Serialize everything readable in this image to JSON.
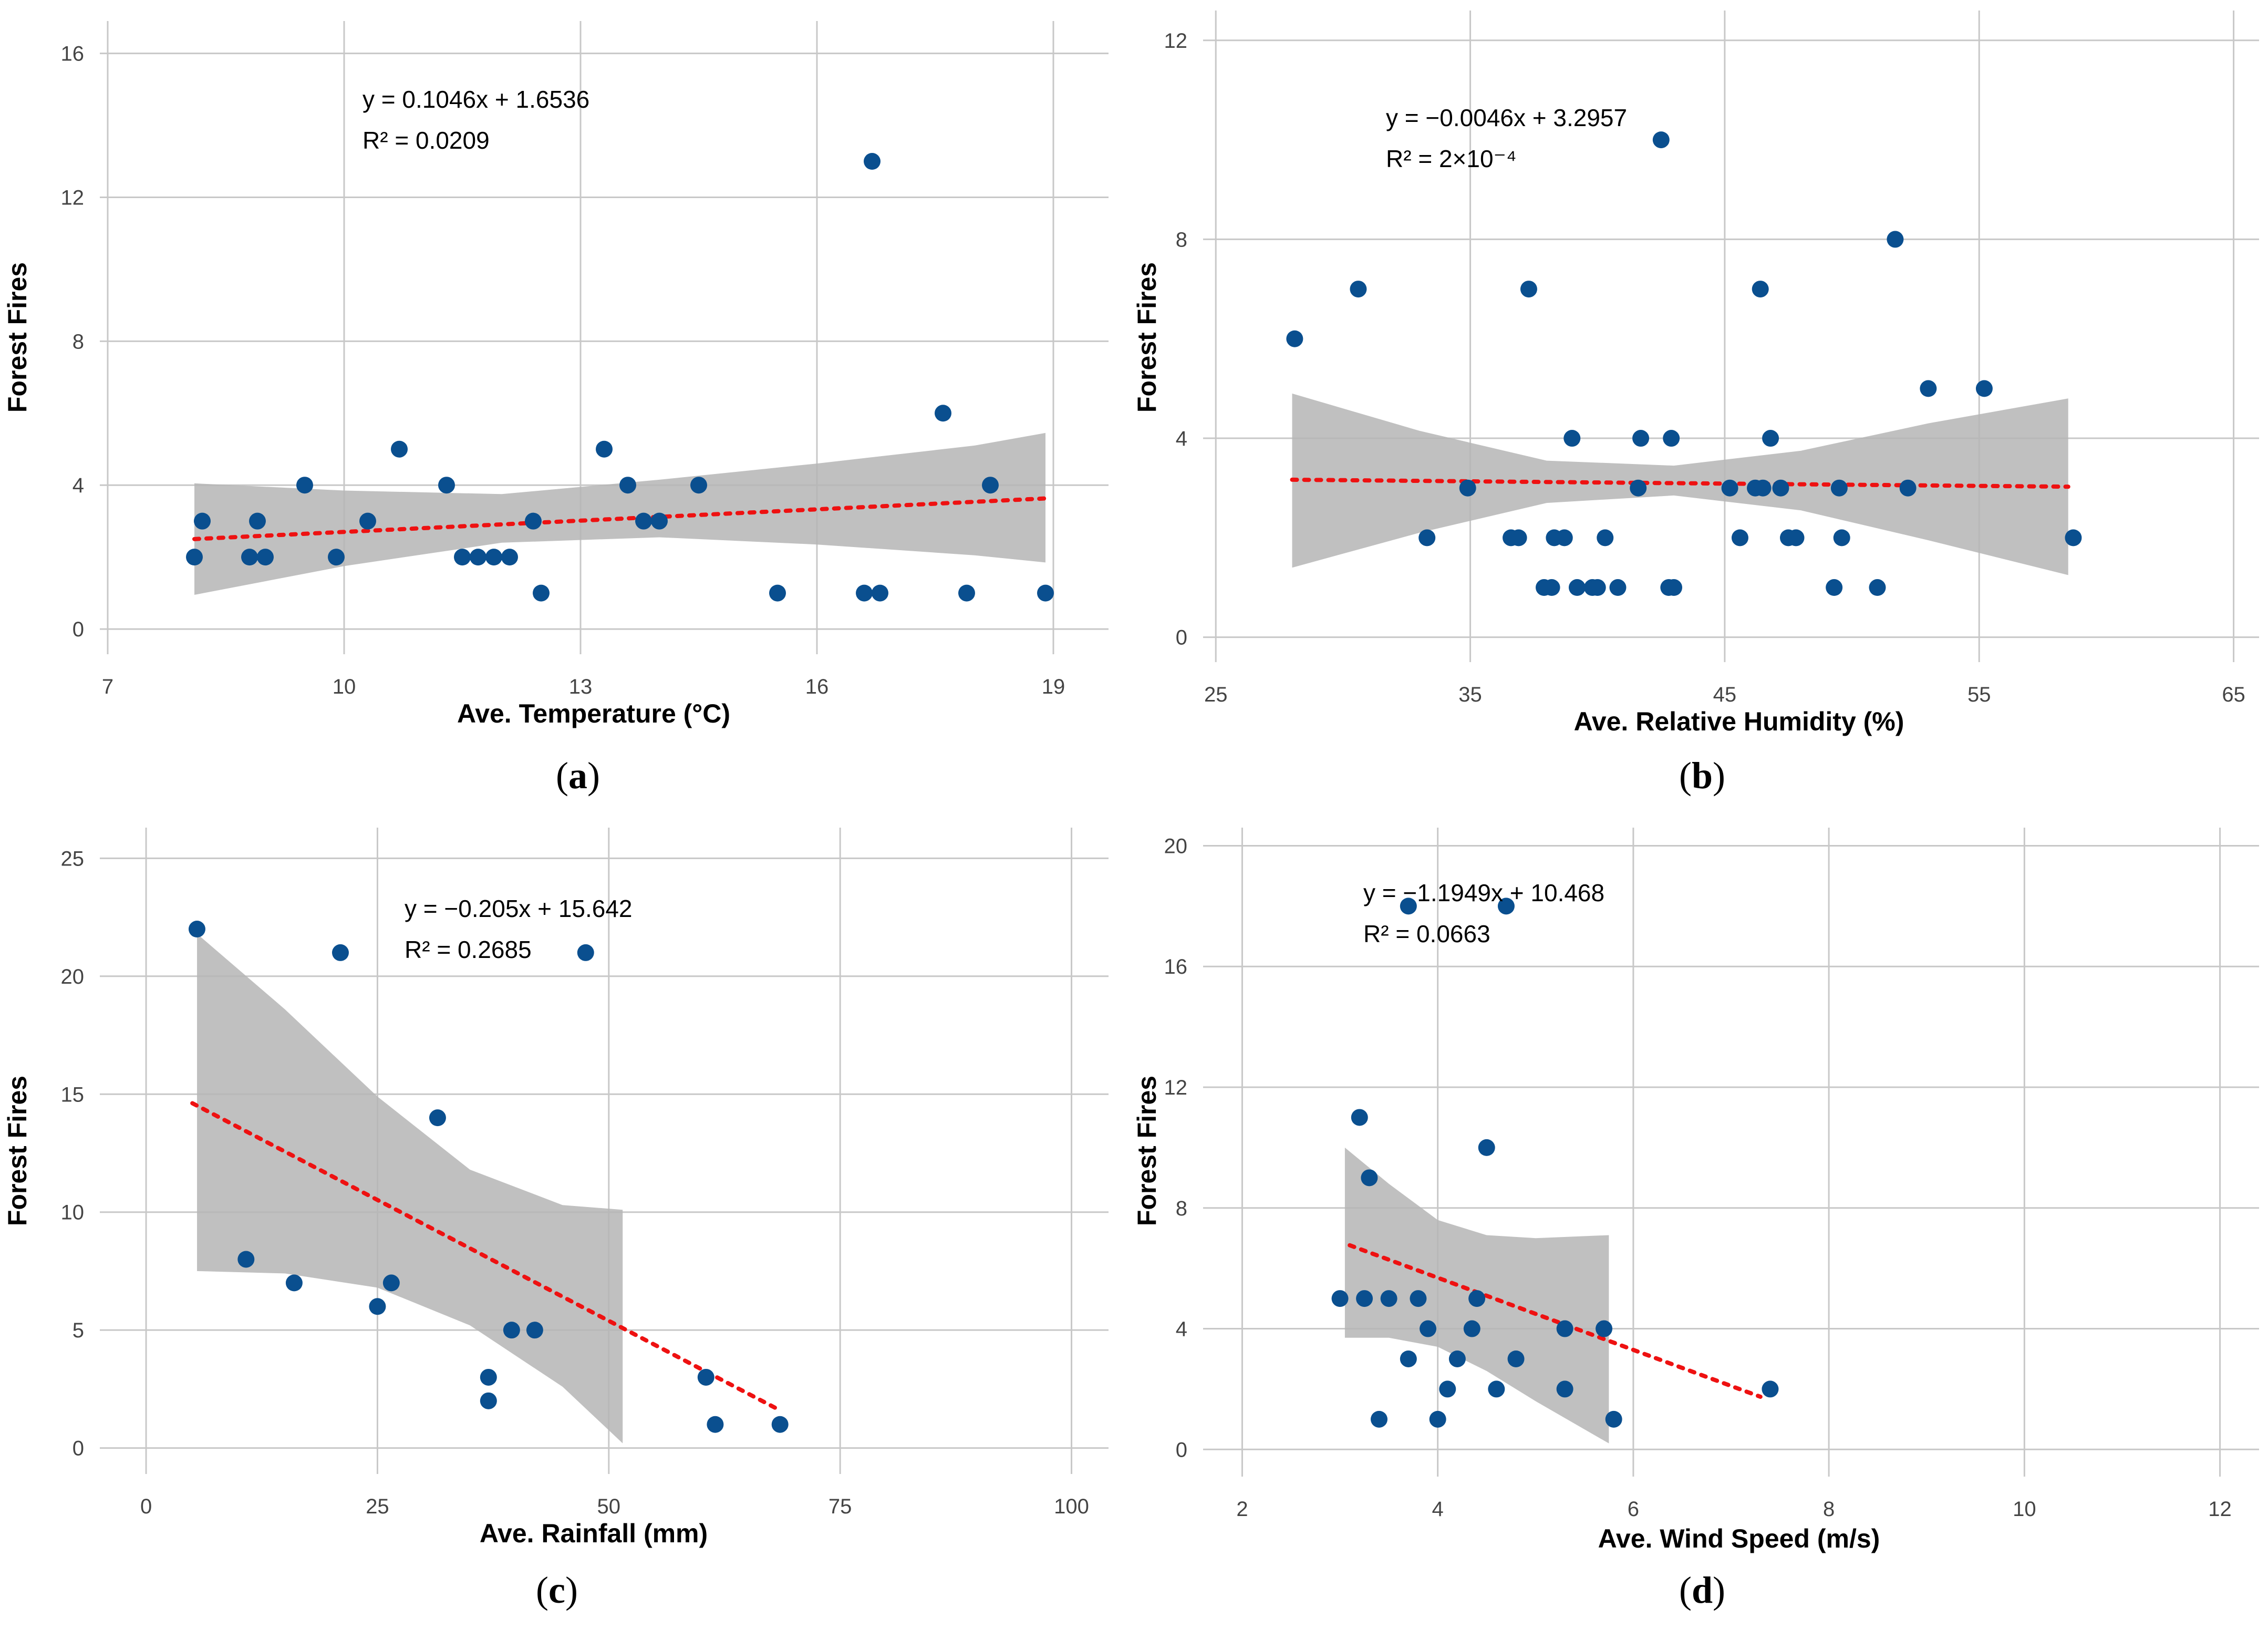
{
  "colors": {
    "point": "#0a4f8f",
    "fit_line": "#ee1111",
    "band": "#b5b5b5",
    "grid": "#c8c8c8"
  },
  "chart_data": [
    {
      "panel": "a",
      "caption": "(a)",
      "type": "scatter",
      "xlabel": "Ave. Temperature (°C)",
      "ylabel": "Forest Fires",
      "xlim": [
        6.9,
        19.7
      ],
      "ylim": [
        -0.7,
        16.9
      ],
      "xticks": [
        7,
        10,
        13,
        16,
        19
      ],
      "yticks": [
        0,
        4,
        8,
        12,
        16
      ],
      "equation": "y = 0.1046x + 1.6536",
      "r2_label": "R² = 0.0209",
      "fit": {
        "slope": 0.1046,
        "intercept": 1.6536,
        "x_range": [
          8.1,
          18.9
        ]
      },
      "band": {
        "upper": [
          [
            8.1,
            4.05
          ],
          [
            10,
            3.85
          ],
          [
            12,
            3.75
          ],
          [
            14,
            4.15
          ],
          [
            16,
            4.6
          ],
          [
            18,
            5.1
          ],
          [
            18.9,
            5.45
          ]
        ],
        "lower": [
          [
            8.1,
            0.95
          ],
          [
            10,
            1.75
          ],
          [
            12,
            2.4
          ],
          [
            14,
            2.55
          ],
          [
            16,
            2.35
          ],
          [
            18,
            2.05
          ],
          [
            18.9,
            1.85
          ]
        ]
      },
      "points": [
        [
          8.1,
          2
        ],
        [
          8.2,
          3
        ],
        [
          8.8,
          2
        ],
        [
          8.9,
          3
        ],
        [
          9.0,
          2
        ],
        [
          9.5,
          4
        ],
        [
          9.9,
          2
        ],
        [
          10.3,
          3
        ],
        [
          10.7,
          5
        ],
        [
          11.3,
          4
        ],
        [
          11.5,
          2
        ],
        [
          11.7,
          2
        ],
        [
          11.9,
          2
        ],
        [
          12.1,
          2
        ],
        [
          12.4,
          3
        ],
        [
          12.5,
          1
        ],
        [
          13.3,
          5
        ],
        [
          13.6,
          4
        ],
        [
          13.8,
          3
        ],
        [
          14.0,
          3
        ],
        [
          14.5,
          4
        ],
        [
          15.5,
          1
        ],
        [
          16.6,
          1
        ],
        [
          16.7,
          13
        ],
        [
          16.8,
          1
        ],
        [
          17.6,
          6
        ],
        [
          17.9,
          1
        ],
        [
          18.2,
          4
        ],
        [
          18.9,
          1
        ]
      ]
    },
    {
      "panel": "b",
      "caption": "(b)",
      "type": "scatter",
      "xlabel": "Ave. Relative Humidity (%)",
      "ylabel": "Forest Fires",
      "xlim": [
        24.5,
        66.0
      ],
      "ylim": [
        -0.5,
        12.6
      ],
      "xticks": [
        25,
        35,
        45,
        55,
        65
      ],
      "yticks": [
        0,
        4,
        8,
        12
      ],
      "equation": "y = −0.0046x + 3.2957",
      "r2_label": "R² = 2×10⁻⁴",
      "fit": {
        "slope": -0.0046,
        "intercept": 3.2957,
        "x_range": [
          28.0,
          58.5
        ]
      },
      "band": {
        "upper": [
          [
            28,
            4.9
          ],
          [
            33,
            4.15
          ],
          [
            38,
            3.55
          ],
          [
            43,
            3.45
          ],
          [
            48,
            3.75
          ],
          [
            53,
            4.3
          ],
          [
            58.5,
            4.8
          ]
        ],
        "lower": [
          [
            28,
            1.4
          ],
          [
            33,
            2.1
          ],
          [
            38,
            2.7
          ],
          [
            43,
            2.85
          ],
          [
            48,
            2.55
          ],
          [
            53,
            1.95
          ],
          [
            58.5,
            1.25
          ]
        ]
      },
      "points": [
        [
          28.1,
          6
        ],
        [
          30.6,
          7
        ],
        [
          33.3,
          2
        ],
        [
          34.9,
          3
        ],
        [
          36.6,
          2
        ],
        [
          36.9,
          2
        ],
        [
          37.3,
          7
        ],
        [
          37.9,
          1
        ],
        [
          38.2,
          1
        ],
        [
          38.3,
          2
        ],
        [
          38.7,
          2
        ],
        [
          39.0,
          4
        ],
        [
          39.2,
          1
        ],
        [
          39.8,
          1
        ],
        [
          40.0,
          1
        ],
        [
          40.3,
          2
        ],
        [
          40.8,
          1
        ],
        [
          41.6,
          3
        ],
        [
          41.7,
          4
        ],
        [
          42.5,
          10
        ],
        [
          42.8,
          1
        ],
        [
          42.9,
          4
        ],
        [
          43.0,
          1
        ],
        [
          45.2,
          3
        ],
        [
          45.6,
          2
        ],
        [
          46.2,
          3
        ],
        [
          46.4,
          7
        ],
        [
          46.5,
          3
        ],
        [
          46.8,
          4
        ],
        [
          47.2,
          3
        ],
        [
          47.5,
          2
        ],
        [
          47.8,
          2
        ],
        [
          49.3,
          1
        ],
        [
          49.5,
          3
        ],
        [
          49.6,
          2
        ],
        [
          51.0,
          1
        ],
        [
          51.7,
          8
        ],
        [
          52.2,
          3
        ],
        [
          53.0,
          5
        ],
        [
          55.2,
          5
        ],
        [
          58.7,
          2
        ]
      ]
    },
    {
      "panel": "c",
      "caption": "(c)",
      "type": "scatter",
      "xlabel": "Ave. Rainfall (mm)",
      "ylabel": "Forest Fires",
      "xlim": [
        -5.0,
        104.0
      ],
      "ylim": [
        -1.1,
        26.3
      ],
      "xticks": [
        0,
        25,
        50,
        75,
        100
      ],
      "yticks": [
        0,
        5,
        10,
        15,
        20,
        25
      ],
      "equation": "y = −0.205x + 15.642",
      "r2_label": "R² = 0.2685",
      "fit": {
        "slope": -0.205,
        "intercept": 15.642,
        "x_range": [
          5.0,
          68.5
        ]
      },
      "band": {
        "upper": [
          [
            5.5,
            21.8
          ],
          [
            15,
            18.6
          ],
          [
            25,
            14.9
          ],
          [
            35,
            11.8
          ],
          [
            45,
            10.3
          ],
          [
            51.5,
            10.1
          ]
        ],
        "lower": [
          [
            5.5,
            7.5
          ],
          [
            15,
            7.4
          ],
          [
            25,
            6.8
          ],
          [
            35,
            5.2
          ],
          [
            45,
            2.6
          ],
          [
            51.5,
            0.2
          ]
        ]
      },
      "points": [
        [
          5.5,
          22
        ],
        [
          10.8,
          8
        ],
        [
          16.0,
          7
        ],
        [
          21.0,
          21
        ],
        [
          25.0,
          6
        ],
        [
          26.5,
          7
        ],
        [
          31.5,
          14
        ],
        [
          37.0,
          3
        ],
        [
          37.0,
          2
        ],
        [
          39.5,
          5
        ],
        [
          42.0,
          5
        ],
        [
          47.5,
          21
        ],
        [
          60.5,
          3
        ],
        [
          61.5,
          1
        ],
        [
          68.5,
          1
        ]
      ]
    },
    {
      "panel": "d",
      "caption": "(d)",
      "type": "scatter",
      "xlabel": "Ave. Wind Speed (m/s)",
      "ylabel": "Forest Fires",
      "xlim": [
        1.6,
        12.4
      ],
      "ylim": [
        -0.9,
        20.6
      ],
      "xticks": [
        2,
        4,
        6,
        8,
        10,
        12
      ],
      "yticks": [
        0,
        4,
        8,
        12,
        16,
        20
      ],
      "equation": "y = −1.1949x + 10.468",
      "r2_label": "R² = 0.0663",
      "fit": {
        "slope": -1.1949,
        "intercept": 10.468,
        "x_range": [
          3.1,
          7.3
        ]
      },
      "band": {
        "upper": [
          [
            3.05,
            10.0
          ],
          [
            3.5,
            8.8
          ],
          [
            4.0,
            7.6
          ],
          [
            4.5,
            7.1
          ],
          [
            5.0,
            7.0
          ],
          [
            5.75,
            7.1
          ]
        ],
        "lower": [
          [
            3.05,
            3.7
          ],
          [
            3.5,
            3.7
          ],
          [
            4.0,
            3.4
          ],
          [
            4.5,
            2.6
          ],
          [
            5.0,
            1.6
          ],
          [
            5.75,
            0.2
          ]
        ]
      },
      "points": [
        [
          3.0,
          5
        ],
        [
          3.2,
          11
        ],
        [
          3.25,
          5
        ],
        [
          3.3,
          9
        ],
        [
          3.4,
          1
        ],
        [
          3.5,
          5
        ],
        [
          3.7,
          18
        ],
        [
          3.7,
          3
        ],
        [
          3.8,
          5
        ],
        [
          3.9,
          4
        ],
        [
          4.0,
          1
        ],
        [
          4.1,
          2
        ],
        [
          4.2,
          3
        ],
        [
          4.35,
          4
        ],
        [
          4.4,
          5
        ],
        [
          4.5,
          10
        ],
        [
          4.6,
          2
        ],
        [
          4.7,
          18
        ],
        [
          4.8,
          3
        ],
        [
          5.3,
          4
        ],
        [
          5.3,
          2
        ],
        [
          5.7,
          4
        ],
        [
          5.8,
          1
        ],
        [
          7.4,
          2
        ]
      ]
    }
  ]
}
